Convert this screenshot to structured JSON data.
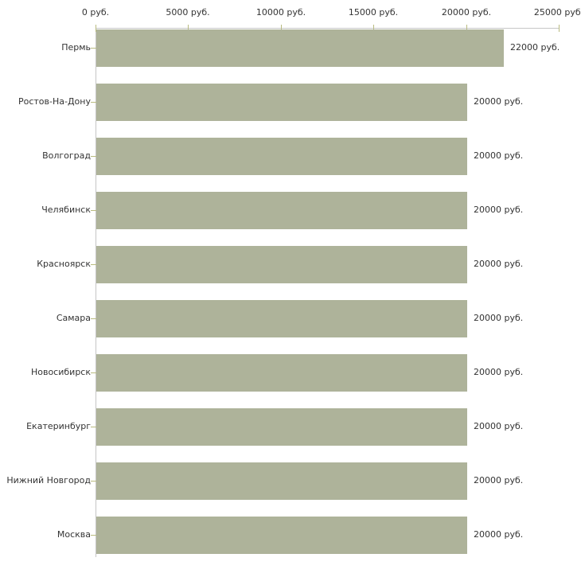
{
  "chart_data": {
    "type": "bar",
    "orientation": "horizontal",
    "title": "",
    "xlabel": "",
    "ylabel": "",
    "unit": "руб.",
    "categories": [
      "Пермь",
      "Ростов-На-Дону",
      "Волгоград",
      "Челябинск",
      "Красноярск",
      "Самара",
      "Новосибирск",
      "Екатеринбург",
      "Нижний Новгород",
      "Москва"
    ],
    "values": [
      22000,
      20000,
      20000,
      20000,
      20000,
      20000,
      20000,
      20000,
      20000,
      20000
    ],
    "value_labels": [
      "22000 руб.",
      "20000 руб.",
      "20000 руб.",
      "20000 руб.",
      "20000 руб.",
      "20000 руб.",
      "20000 руб.",
      "20000 руб.",
      "20000 руб.",
      "20000 руб."
    ],
    "x_ticks": [
      0,
      5000,
      10000,
      15000,
      20000,
      25000
    ],
    "x_tick_labels": [
      "0 руб.",
      "5000 руб.",
      "10000 руб.",
      "15000 руб.",
      "20000 руб.",
      "25000 руб."
    ],
    "xlim": [
      0,
      25000
    ],
    "grid": false,
    "legend": "none",
    "colors": {
      "bar": "#aeb39a",
      "axis_line": "#c6c6c6",
      "tick": "#b9bb80",
      "text": "#333333",
      "background": "#ffffff"
    }
  }
}
